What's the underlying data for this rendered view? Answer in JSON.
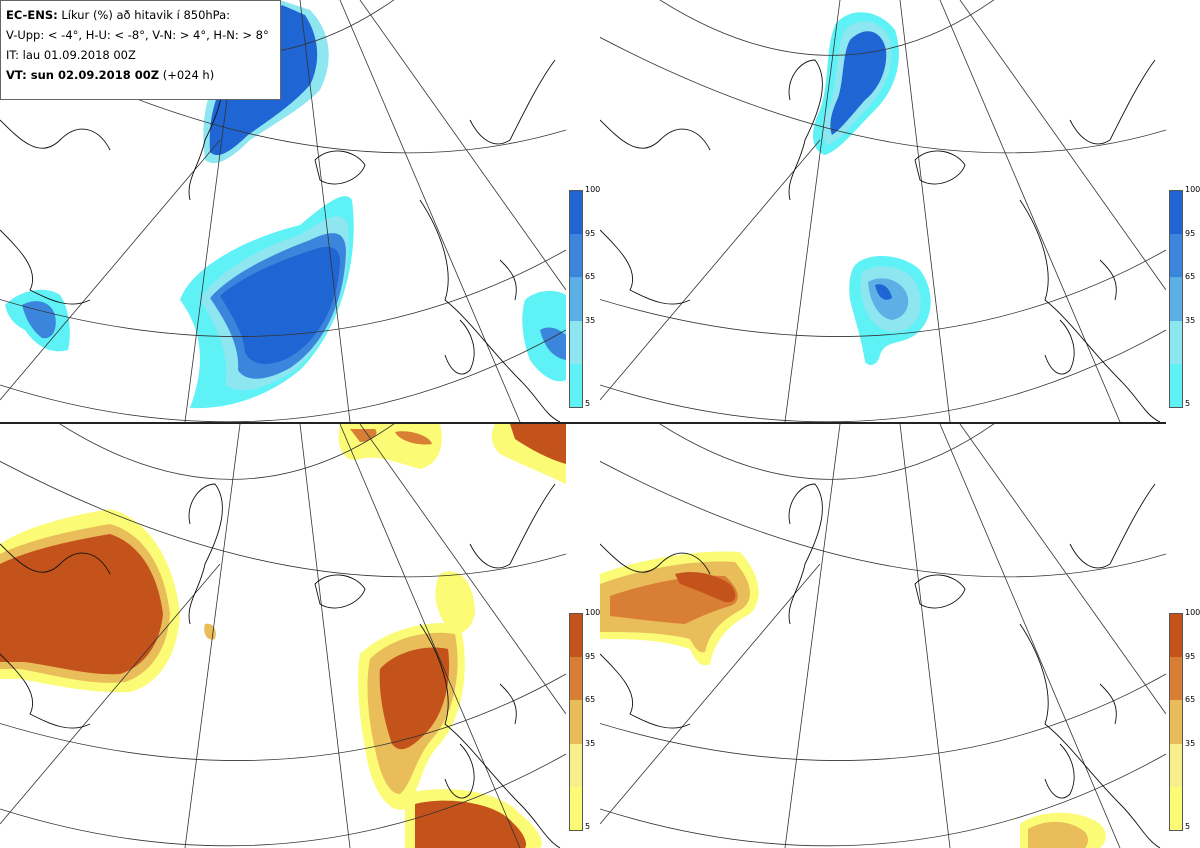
{
  "header": {
    "line1_bold": "EC-ENS:",
    "line1_rest": "Líkur (%) að hitavik í 850hPa:",
    "line2": "V-Upp: < -4°, H-U: < -8°, V-N: > 4°, H-N: > 8°",
    "line3": "IT: lau 01.09.2018 00Z",
    "line4_bold": "VT: sun 02.09.2018 00Z",
    "line4_rest": "(+024 h)"
  },
  "colorbar": {
    "ticks": [
      "100",
      "95",
      "65",
      "35",
      "5"
    ],
    "cold_colors": [
      "#2065d4",
      "#3b86dc",
      "#5cb0e6",
      "#8ee6f0",
      "#5ef2f6"
    ],
    "warm_colors": [
      "#c4521b",
      "#d97f35",
      "#e9bd59",
      "#f7ee8c",
      "#fbfb75"
    ]
  },
  "panels": [
    {
      "name": "V-Upp",
      "kind": "cold"
    },
    {
      "name": "H-U",
      "kind": "cold"
    },
    {
      "name": "V-N",
      "kind": "warm"
    },
    {
      "name": "H-N",
      "kind": "warm"
    }
  ]
}
